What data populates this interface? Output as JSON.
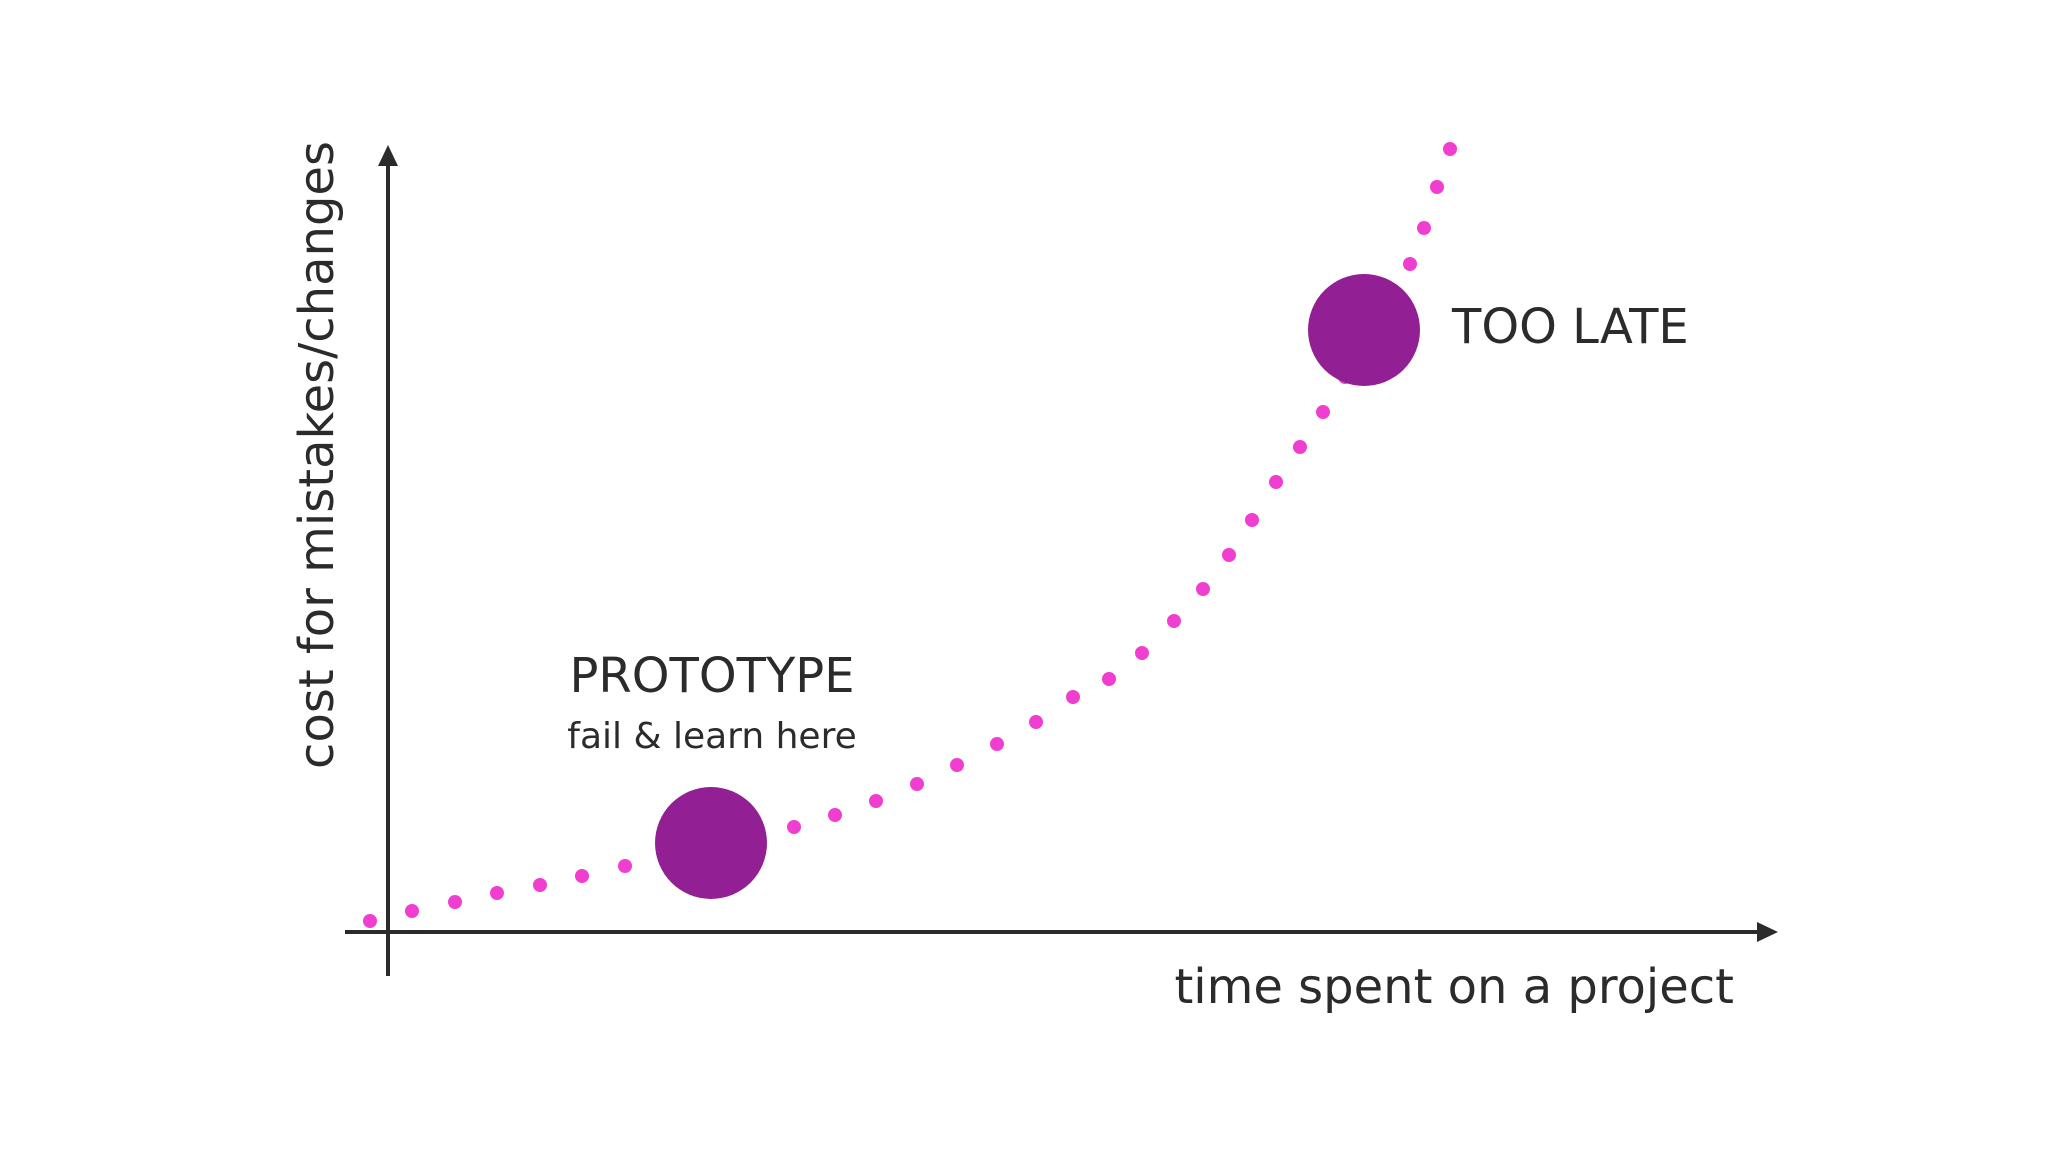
{
  "axes": {
    "y_label": "cost for mistakes/changes",
    "x_label": "time spent on a project"
  },
  "annotations": {
    "prototype_title": "PROTOTYPE",
    "prototype_subtitle": "fail & learn here",
    "too_late_title": "TOO LATE"
  },
  "colors": {
    "dot": "#f03fd0",
    "marker": "#921f93",
    "axis": "#2b2b2b",
    "text": "#2b2b2b"
  },
  "curve": {
    "style": "dotted exponential curve",
    "markers": [
      "prototype-marker",
      "too-late-marker"
    ]
  }
}
